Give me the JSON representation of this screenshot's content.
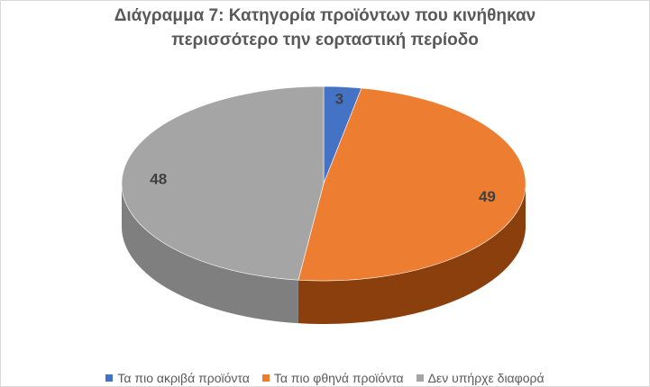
{
  "chart_data": {
    "type": "pie",
    "title_lines": [
      "Διάγραμμα 7: Κατηγορία προϊόντων που κινήθηκαν",
      "περισσότερο την εορταστική περίοδο"
    ],
    "categories": [
      "Τα πιο ακριβά προϊόντα",
      "Τα πιο φθηνά προϊόντα",
      "Δεν υπήρχε διαφορά"
    ],
    "values": [
      3,
      49,
      48
    ],
    "data_labels": [
      "3",
      "49",
      "48"
    ],
    "colors": [
      "#4472c4",
      "#ed7d31",
      "#a5a5a5"
    ],
    "side_colors": [
      "#2f5597",
      "#8a3f0d",
      "#7f7f7f"
    ],
    "style": "3d-pie",
    "legend_position": "bottom"
  }
}
